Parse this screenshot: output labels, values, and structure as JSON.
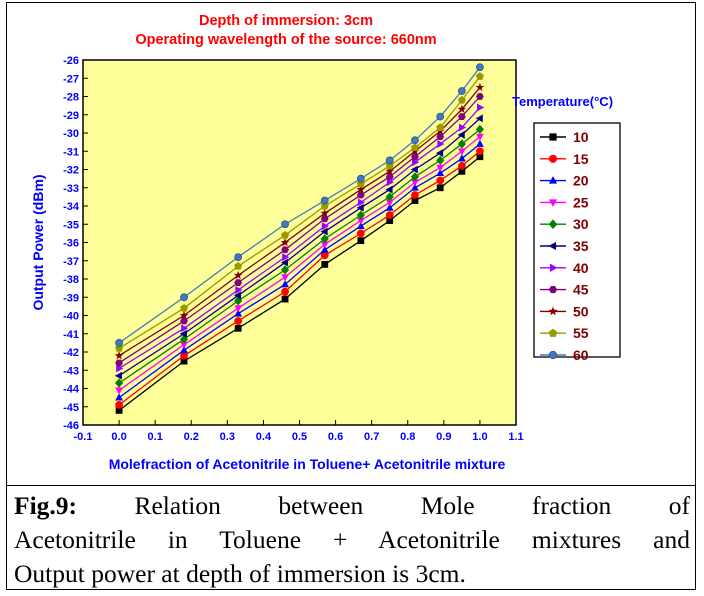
{
  "chart_data": {
    "type": "line",
    "title": "Depth of immersion: 3cm",
    "subtitle": "Operating wavelength of the source: 660nm",
    "xlabel": "Molefraction of Acetonitrile in Toluene+ Acetonitrile mixture",
    "ylabel": "Output Power (dBm)",
    "xlim": [
      -0.1,
      1.1
    ],
    "ylim": [
      -46,
      -26
    ],
    "xticks": [
      "-0.1",
      "0.0",
      "0.1",
      "0.2",
      "0.3",
      "0.4",
      "0.5",
      "0.6",
      "0.7",
      "0.8",
      "0.9",
      "1.0",
      "1.1"
    ],
    "yticks": [
      "-26",
      "-27",
      "-28",
      "-29",
      "-30",
      "-31",
      "-32",
      "-33",
      "-34",
      "-35",
      "-36",
      "-37",
      "-38",
      "-39",
      "-40",
      "-41",
      "-42",
      "-43",
      "-44",
      "-45",
      "-46"
    ],
    "legend_title": "Temperature(°C)",
    "legend_position": "right",
    "grid": false,
    "x": [
      0.0,
      0.18,
      0.33,
      0.46,
      0.57,
      0.67,
      0.75,
      0.82,
      0.89,
      0.95,
      1.0
    ],
    "series": [
      {
        "name": "10",
        "color": "#000000",
        "marker": "square",
        "values": [
          -45.2,
          -42.5,
          -40.7,
          -39.1,
          -37.2,
          -35.9,
          -34.8,
          -33.7,
          -33.0,
          -32.1,
          -31.3
        ]
      },
      {
        "name": "15",
        "color": "#ff0000",
        "marker": "circle",
        "values": [
          -44.9,
          -42.2,
          -40.3,
          -38.7,
          -36.7,
          -35.5,
          -34.5,
          -33.4,
          -32.6,
          -31.8,
          -31.0
        ]
      },
      {
        "name": "20",
        "color": "#0000ff",
        "marker": "triangle-up",
        "values": [
          -44.5,
          -41.9,
          -39.9,
          -38.3,
          -36.4,
          -35.1,
          -34.1,
          -33.0,
          -32.2,
          -31.4,
          -30.6
        ]
      },
      {
        "name": "25",
        "color": "#ff00ff",
        "marker": "triangle-down",
        "values": [
          -44.1,
          -41.6,
          -39.6,
          -37.9,
          -36.1,
          -34.8,
          -33.8,
          -32.7,
          -31.9,
          -31.0,
          -30.2
        ]
      },
      {
        "name": "30",
        "color": "#008000",
        "marker": "diamond",
        "values": [
          -43.7,
          -41.3,
          -39.2,
          -37.5,
          -35.8,
          -34.5,
          -33.5,
          -32.4,
          -31.5,
          -30.6,
          -29.8
        ]
      },
      {
        "name": "35",
        "color": "#000080",
        "marker": "triangle-left",
        "values": [
          -43.3,
          -41.0,
          -38.9,
          -37.1,
          -35.4,
          -34.1,
          -33.1,
          -32.0,
          -31.1,
          -30.1,
          -29.2
        ]
      },
      {
        "name": "40",
        "color": "#9900ff",
        "marker": "triangle-right",
        "values": [
          -42.9,
          -40.7,
          -38.6,
          -36.8,
          -35.1,
          -33.8,
          -32.7,
          -31.6,
          -30.6,
          -29.7,
          -28.6
        ]
      },
      {
        "name": "45",
        "color": "#800080",
        "marker": "hexagon",
        "values": [
          -42.6,
          -40.3,
          -38.2,
          -36.4,
          -34.7,
          -33.4,
          -32.4,
          -31.3,
          -30.2,
          -29.1,
          -28.0
        ]
      },
      {
        "name": "50",
        "color": "#800000",
        "marker": "star",
        "values": [
          -42.2,
          -40.0,
          -37.8,
          -36.0,
          -34.4,
          -33.1,
          -32.1,
          -31.0,
          -29.9,
          -28.7,
          -27.5
        ]
      },
      {
        "name": "55",
        "color": "#999900",
        "marker": "pentagon",
        "values": [
          -41.8,
          -39.6,
          -37.3,
          -35.6,
          -34.0,
          -32.8,
          -31.8,
          -30.8,
          -29.7,
          -28.2,
          -26.9
        ]
      },
      {
        "name": "60",
        "color": "#3d7ac0",
        "marker": "circle",
        "values": [
          -41.5,
          -39.0,
          -36.8,
          -35.0,
          -33.7,
          -32.5,
          -31.5,
          -30.4,
          -29.1,
          -27.7,
          -26.4
        ]
      }
    ]
  },
  "caption": {
    "label": "Fig.9:",
    "line1": "Relation between Mole fraction of",
    "line2": "Acetonitrile in Toluene + Acetonitrile mixtures and",
    "line3": "Output power at depth of immersion is 3cm."
  },
  "colors": {
    "plot_background": "#ffff99",
    "title": "#ff0000",
    "axis_labels": "#0000ff"
  }
}
